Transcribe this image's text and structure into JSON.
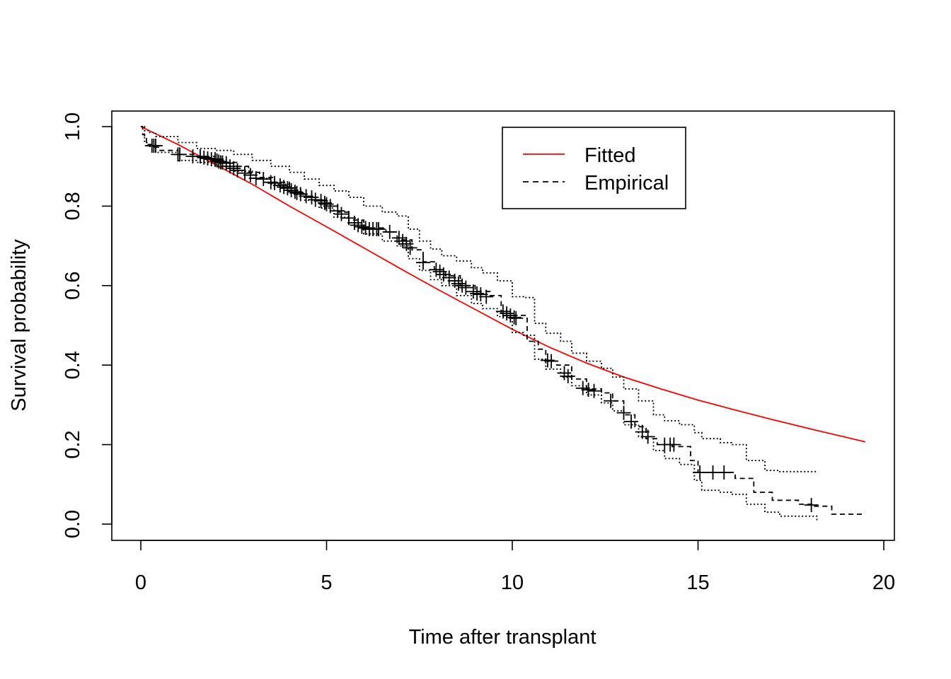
{
  "colors": {
    "fitted": "#ff0000",
    "empirical": "#000000",
    "background": "#ffffff"
  },
  "chart_data": {
    "type": "line",
    "title": "",
    "xlabel": "Time after transplant",
    "ylabel": "Survival probability",
    "xlim": [
      0,
      20
    ],
    "ylim": [
      0,
      1.0
    ],
    "x_ticks": [
      "0",
      "5",
      "10",
      "15",
      "20"
    ],
    "y_ticks": [
      "0.0",
      "0.2",
      "0.4",
      "0.6",
      "0.8",
      "1.0"
    ],
    "grid": false,
    "legend": {
      "position": "top-right",
      "entries": [
        {
          "name": "Fitted",
          "line": "solid",
          "color": "#ff0000"
        },
        {
          "name": "Empirical",
          "line": "dashed",
          "color": "#000000"
        }
      ]
    },
    "series": [
      {
        "name": "Fitted",
        "style": "solid",
        "color": "#ff0000",
        "x": [
          0,
          1,
          2,
          3,
          4,
          5,
          6,
          7,
          8,
          9,
          10,
          11,
          12,
          13,
          14,
          15,
          16,
          17,
          18,
          19,
          19.5
        ],
        "y": [
          1.0,
          0.955,
          0.905,
          0.855,
          0.8,
          0.748,
          0.695,
          0.642,
          0.59,
          0.54,
          0.49,
          0.445,
          0.405,
          0.37,
          0.34,
          0.312,
          0.287,
          0.263,
          0.24,
          0.218,
          0.207
        ]
      },
      {
        "name": "Empirical",
        "style": "dashed",
        "color": "#000000",
        "x": [
          0,
          0.05,
          0.1,
          0.15,
          0.2,
          0.3,
          0.5,
          1.0,
          1.5,
          2.0,
          2.3,
          2.6,
          2.9,
          3.2,
          3.6,
          4.0,
          4.3,
          4.6,
          5.0,
          5.3,
          5.6,
          6.0,
          6.6,
          6.9,
          7.3,
          7.6,
          7.9,
          8.2,
          8.6,
          9.0,
          9.4,
          9.7,
          10.0,
          10.4,
          10.7,
          10.9,
          11.2,
          11.6,
          12.0,
          12.4,
          12.7,
          13.0,
          13.3,
          13.6,
          13.9,
          14.3,
          14.8,
          15.0,
          15.8,
          16.0,
          16.5,
          17.0,
          17.7,
          18.1,
          18.6,
          19.5
        ],
        "y": [
          1.0,
          0.98,
          0.97,
          0.96,
          0.955,
          0.948,
          0.94,
          0.93,
          0.925,
          0.918,
          0.91,
          0.9,
          0.885,
          0.872,
          0.86,
          0.846,
          0.83,
          0.815,
          0.8,
          0.785,
          0.765,
          0.745,
          0.735,
          0.715,
          0.69,
          0.66,
          0.64,
          0.625,
          0.6,
          0.585,
          0.575,
          0.53,
          0.525,
          0.46,
          0.44,
          0.41,
          0.4,
          0.365,
          0.34,
          0.33,
          0.31,
          0.275,
          0.245,
          0.215,
          0.2,
          0.195,
          0.16,
          0.13,
          0.13,
          0.115,
          0.08,
          0.06,
          0.05,
          0.045,
          0.025,
          0.025
        ]
      },
      {
        "name": "",
        "style": "dotted",
        "color": "#000000",
        "x": [
          0,
          0.1,
          0.2,
          0.4,
          1.0,
          1.5,
          2.0,
          2.5,
          3.0,
          3.5,
          4.0,
          4.4,
          4.8,
          5.2,
          5.6,
          6.0,
          6.5,
          6.9,
          7.2,
          7.5,
          7.8,
          8.1,
          8.5,
          8.9,
          9.2,
          9.6,
          10.0,
          10.3,
          10.6,
          10.9,
          11.3,
          11.6,
          12.0,
          12.4,
          12.7,
          13.0,
          13.4,
          13.8,
          14.1,
          14.5,
          14.9,
          15.1,
          15.6,
          15.9,
          16.3,
          16.8,
          17.2,
          17.8,
          18.2
        ],
        "y": [
          1.0,
          0.99,
          0.985,
          0.975,
          0.96,
          0.945,
          0.94,
          0.93,
          0.915,
          0.9,
          0.885,
          0.868,
          0.852,
          0.838,
          0.822,
          0.8,
          0.785,
          0.775,
          0.742,
          0.712,
          0.692,
          0.675,
          0.662,
          0.645,
          0.632,
          0.612,
          0.572,
          0.57,
          0.505,
          0.48,
          0.46,
          0.43,
          0.41,
          0.392,
          0.37,
          0.34,
          0.31,
          0.275,
          0.26,
          0.25,
          0.23,
          0.215,
          0.205,
          0.2,
          0.16,
          0.135,
          0.132,
          0.132,
          0.13
        ]
      },
      {
        "name": "",
        "style": "dotted",
        "color": "#000000",
        "x": [
          0,
          0.1,
          0.2,
          0.4,
          1.0,
          1.5,
          2.0,
          2.5,
          3.0,
          3.5,
          4.0,
          4.4,
          4.8,
          5.2,
          5.6,
          6.0,
          6.5,
          6.9,
          7.2,
          7.5,
          7.8,
          8.1,
          8.5,
          8.9,
          9.2,
          9.6,
          10.0,
          10.3,
          10.6,
          10.9,
          11.3,
          11.6,
          12.0,
          12.4,
          12.7,
          13.0,
          13.4,
          13.8,
          14.1,
          14.5,
          14.9,
          15.1,
          15.6,
          15.9,
          16.3,
          16.8,
          17.2,
          17.8,
          18.2
        ],
        "y": [
          1.0,
          0.96,
          0.95,
          0.935,
          0.915,
          0.91,
          0.9,
          0.888,
          0.87,
          0.855,
          0.835,
          0.815,
          0.795,
          0.772,
          0.752,
          0.73,
          0.712,
          0.7,
          0.668,
          0.638,
          0.615,
          0.6,
          0.575,
          0.555,
          0.542,
          0.522,
          0.482,
          0.475,
          0.415,
          0.39,
          0.37,
          0.348,
          0.325,
          0.305,
          0.285,
          0.25,
          0.22,
          0.185,
          0.165,
          0.15,
          0.11,
          0.085,
          0.08,
          0.075,
          0.05,
          0.03,
          0.02,
          0.02,
          0.005
        ]
      }
    ],
    "censor_marks": {
      "x": [
        0.3,
        0.35,
        0.4,
        1.0,
        1.05,
        1.4,
        1.6,
        1.7,
        1.8,
        1.9,
        2.0,
        2.05,
        2.1,
        2.15,
        2.2,
        2.3,
        2.4,
        2.5,
        2.6,
        2.8,
        2.95,
        3.1,
        3.3,
        3.5,
        3.6,
        3.75,
        3.85,
        3.95,
        4.05,
        4.15,
        4.2,
        4.3,
        4.45,
        4.6,
        4.7,
        4.85,
        4.95,
        5.0,
        5.1,
        5.3,
        5.4,
        5.6,
        5.75,
        5.85,
        5.95,
        6.05,
        6.15,
        6.25,
        6.35,
        6.4,
        6.7,
        6.95,
        7.05,
        7.15,
        7.25,
        7.6,
        7.95,
        8.05,
        8.15,
        8.3,
        8.45,
        8.55,
        8.65,
        8.75,
        8.95,
        9.05,
        9.15,
        9.3,
        9.75,
        9.85,
        9.95,
        10.05,
        10.1,
        10.95,
        11.05,
        11.4,
        11.5,
        11.9,
        12.05,
        12.2,
        12.65,
        13.0,
        13.2,
        13.5,
        13.65,
        14.1,
        14.25,
        14.35,
        15.05,
        15.4,
        15.7,
        18.05
      ],
      "y": [
        0.952,
        0.952,
        0.952,
        0.93,
        0.93,
        0.925,
        0.925,
        0.922,
        0.92,
        0.918,
        0.918,
        0.915,
        0.912,
        0.91,
        0.91,
        0.908,
        0.9,
        0.895,
        0.89,
        0.883,
        0.878,
        0.87,
        0.868,
        0.86,
        0.858,
        0.852,
        0.848,
        0.845,
        0.84,
        0.836,
        0.833,
        0.83,
        0.825,
        0.822,
        0.816,
        0.813,
        0.808,
        0.805,
        0.8,
        0.788,
        0.78,
        0.77,
        0.758,
        0.752,
        0.748,
        0.745,
        0.742,
        0.742,
        0.742,
        0.742,
        0.735,
        0.72,
        0.712,
        0.705,
        0.695,
        0.658,
        0.64,
        0.635,
        0.628,
        0.62,
        0.612,
        0.605,
        0.6,
        0.595,
        0.585,
        0.58,
        0.578,
        0.572,
        0.535,
        0.53,
        0.525,
        0.52,
        0.518,
        0.412,
        0.41,
        0.38,
        0.372,
        0.342,
        0.338,
        0.335,
        0.31,
        0.28,
        0.258,
        0.232,
        0.22,
        0.2,
        0.2,
        0.2,
        0.13,
        0.13,
        0.13,
        0.048
      ]
    }
  }
}
